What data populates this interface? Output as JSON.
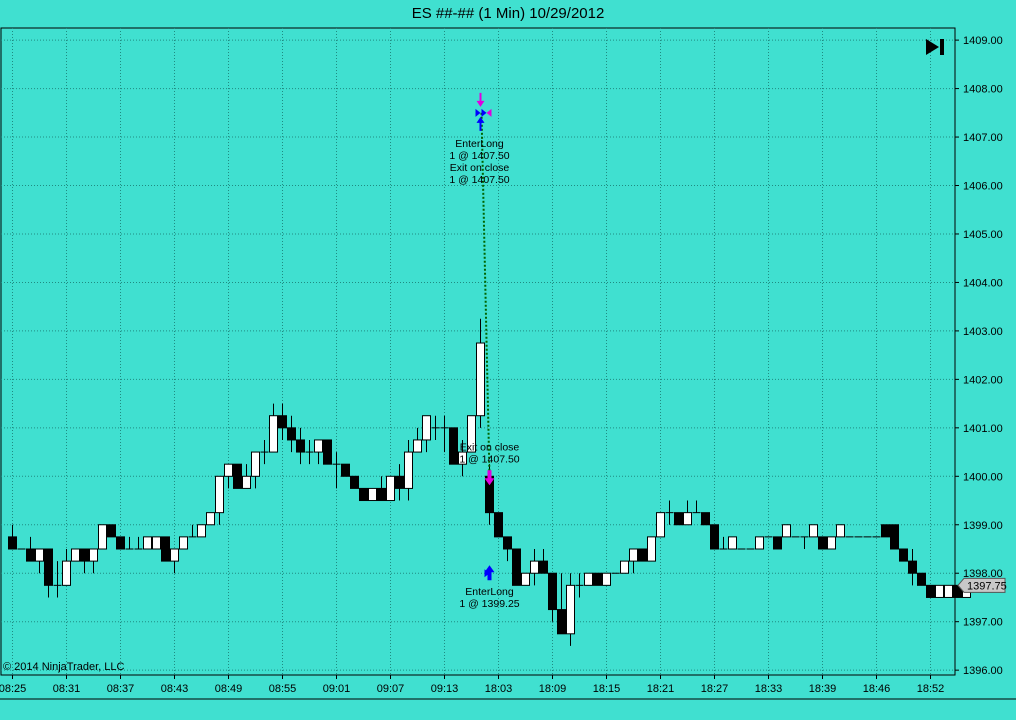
{
  "title": "ES ##-## (1 Min)  10/29/2012",
  "copyright": "© 2014 NinjaTrader, LLC",
  "colors": {
    "background": "#40E0D0",
    "grid": "#1f8c82",
    "bull": "#FFFFFF",
    "bear": "#000000",
    "entry": "#0000FF",
    "exit": "#E000E0",
    "trade_line": "#006400"
  },
  "icons": {
    "go_to_last_bar": "skip-to-end-icon"
  },
  "chart_data": {
    "type": "candlestick",
    "instrument": "ES ##-##",
    "interval": "1 Min",
    "date": "10/29/2012",
    "ylim": [
      1395.9,
      1409.25
    ],
    "y_ticks": [
      "1396.00",
      "1397.00",
      "1398.00",
      "1399.00",
      "1400.00",
      "1401.00",
      "1402.00",
      "1403.00",
      "1404.00",
      "1405.00",
      "1406.00",
      "1407.00",
      "1408.00",
      "1409.00"
    ],
    "x_ticks": [
      {
        "bar": 0,
        "label": "08:25"
      },
      {
        "bar": 6,
        "label": "08:31"
      },
      {
        "bar": 12,
        "label": "08:37"
      },
      {
        "bar": 18,
        "label": "08:43"
      },
      {
        "bar": 24,
        "label": "08:49"
      },
      {
        "bar": 30,
        "label": "08:55"
      },
      {
        "bar": 36,
        "label": "09:01"
      },
      {
        "bar": 42,
        "label": "09:07"
      },
      {
        "bar": 48,
        "label": "09:13"
      },
      {
        "bar": 54,
        "label": "18:03"
      },
      {
        "bar": 60,
        "label": "18:09"
      },
      {
        "bar": 66,
        "label": "18:15"
      },
      {
        "bar": 72,
        "label": "18:21"
      },
      {
        "bar": 78,
        "label": "18:27"
      },
      {
        "bar": 84,
        "label": "18:33"
      },
      {
        "bar": 90,
        "label": "18:39"
      },
      {
        "bar": 96,
        "label": "18:46"
      },
      {
        "bar": 102,
        "label": "18:52"
      }
    ],
    "last_price": "1397.75",
    "candles": [
      [
        1398.75,
        1399.0,
        1398.5,
        1398.5
      ],
      [
        1398.5,
        1398.5,
        1398.5,
        1398.5
      ],
      [
        1398.5,
        1398.75,
        1398.25,
        1398.25
      ],
      [
        1398.25,
        1398.5,
        1398.0,
        1398.5
      ],
      [
        1398.5,
        1398.5,
        1397.5,
        1397.75
      ],
      [
        1397.75,
        1398.25,
        1397.5,
        1397.75
      ],
      [
        1397.75,
        1398.5,
        1397.75,
        1398.25
      ],
      [
        1398.25,
        1398.5,
        1398.25,
        1398.5
      ],
      [
        1398.5,
        1398.5,
        1398.0,
        1398.25
      ],
      [
        1398.25,
        1398.5,
        1398.0,
        1398.5
      ],
      [
        1398.5,
        1399.0,
        1398.5,
        1399.0
      ],
      [
        1399.0,
        1399.0,
        1398.75,
        1398.75
      ],
      [
        1398.75,
        1398.75,
        1398.5,
        1398.5
      ],
      [
        1398.5,
        1398.75,
        1398.5,
        1398.5
      ],
      [
        1398.5,
        1398.75,
        1398.5,
        1398.5
      ],
      [
        1398.5,
        1398.75,
        1398.5,
        1398.75
      ],
      [
        1398.5,
        1398.75,
        1398.5,
        1398.75
      ],
      [
        1398.75,
        1398.75,
        1398.25,
        1398.25
      ],
      [
        1398.25,
        1398.5,
        1398.0,
        1398.5
      ],
      [
        1398.5,
        1398.75,
        1398.5,
        1398.75
      ],
      [
        1398.75,
        1399.0,
        1398.75,
        1398.75
      ],
      [
        1398.75,
        1399.0,
        1398.75,
        1399.0
      ],
      [
        1399.0,
        1399.25,
        1399.0,
        1399.25
      ],
      [
        1399.25,
        1400.0,
        1399.0,
        1400.0
      ],
      [
        1400.0,
        1400.25,
        1399.75,
        1400.25
      ],
      [
        1400.25,
        1400.25,
        1399.75,
        1399.75
      ],
      [
        1399.75,
        1400.25,
        1399.75,
        1400.0
      ],
      [
        1400.0,
        1400.5,
        1399.75,
        1400.5
      ],
      [
        1400.5,
        1400.75,
        1400.25,
        1400.5
      ],
      [
        1400.5,
        1401.5,
        1400.5,
        1401.25
      ],
      [
        1401.25,
        1401.5,
        1400.75,
        1401.0
      ],
      [
        1401.0,
        1401.25,
        1400.5,
        1400.75
      ],
      [
        1400.75,
        1401.0,
        1400.25,
        1400.5
      ],
      [
        1400.5,
        1400.75,
        1400.25,
        1400.5
      ],
      [
        1400.5,
        1400.75,
        1400.25,
        1400.75
      ],
      [
        1400.75,
        1400.75,
        1400.25,
        1400.25
      ],
      [
        1400.25,
        1400.5,
        1399.75,
        1400.25
      ],
      [
        1400.25,
        1400.25,
        1400.0,
        1400.0
      ],
      [
        1400.0,
        1400.0,
        1399.75,
        1399.75
      ],
      [
        1399.75,
        1399.75,
        1399.5,
        1399.5
      ],
      [
        1399.5,
        1399.75,
        1399.5,
        1399.75
      ],
      [
        1399.75,
        1400.0,
        1399.5,
        1399.5
      ],
      [
        1399.5,
        1400.0,
        1399.5,
        1400.0
      ],
      [
        1400.0,
        1400.25,
        1399.5,
        1399.75
      ],
      [
        1399.75,
        1400.75,
        1399.5,
        1400.5
      ],
      [
        1400.5,
        1401.0,
        1400.5,
        1400.75
      ],
      [
        1400.75,
        1401.25,
        1400.5,
        1401.25
      ],
      [
        1401.0,
        1401.25,
        1400.75,
        1401.0
      ],
      [
        1401.0,
        1401.25,
        1400.5,
        1401.0
      ],
      [
        1401.0,
        1401.0,
        1400.25,
        1400.25
      ],
      [
        1400.25,
        1400.75,
        1400.0,
        1400.5
      ],
      [
        1400.5,
        1401.25,
        1400.5,
        1401.25
      ],
      [
        1401.25,
        1403.25,
        1401.0,
        1402.75
      ],
      [
        1400.0,
        1400.25,
        1399.0,
        1399.25
      ],
      [
        1399.25,
        1399.25,
        1398.75,
        1398.75
      ],
      [
        1398.75,
        1398.75,
        1398.25,
        1398.5
      ],
      [
        1398.5,
        1398.5,
        1397.75,
        1397.75
      ],
      [
        1397.75,
        1398.0,
        1397.75,
        1398.0
      ],
      [
        1398.0,
        1398.5,
        1397.75,
        1398.25
      ],
      [
        1398.25,
        1398.5,
        1398.0,
        1398.0
      ],
      [
        1398.0,
        1398.0,
        1397.0,
        1397.25
      ],
      [
        1397.25,
        1398.0,
        1396.75,
        1396.75
      ],
      [
        1396.75,
        1398.0,
        1396.5,
        1397.75
      ],
      [
        1397.75,
        1398.0,
        1397.5,
        1397.75
      ],
      [
        1397.75,
        1398.0,
        1397.75,
        1398.0
      ],
      [
        1398.0,
        1398.0,
        1397.75,
        1397.75
      ],
      [
        1397.75,
        1398.0,
        1397.75,
        1398.0
      ],
      [
        1398.0,
        1398.0,
        1398.0,
        1398.0
      ],
      [
        1398.0,
        1398.25,
        1398.0,
        1398.25
      ],
      [
        1398.25,
        1398.5,
        1398.0,
        1398.5
      ],
      [
        1398.5,
        1398.5,
        1398.25,
        1398.25
      ],
      [
        1398.25,
        1398.75,
        1398.25,
        1398.75
      ],
      [
        1398.75,
        1399.25,
        1398.75,
        1399.25
      ],
      [
        1399.25,
        1399.5,
        1399.0,
        1399.25
      ],
      [
        1399.25,
        1399.25,
        1399.0,
        1399.0
      ],
      [
        1399.0,
        1399.5,
        1399.0,
        1399.25
      ],
      [
        1399.25,
        1399.5,
        1399.25,
        1399.25
      ],
      [
        1399.25,
        1399.25,
        1399.0,
        1399.0
      ],
      [
        1399.0,
        1399.0,
        1398.5,
        1398.5
      ],
      [
        1398.5,
        1398.75,
        1398.5,
        1398.5
      ],
      [
        1398.5,
        1398.75,
        1398.5,
        1398.75
      ],
      [
        1398.5,
        1398.5,
        1398.5,
        1398.5
      ],
      [
        1398.5,
        1398.5,
        1398.5,
        1398.5
      ],
      [
        1398.5,
        1398.75,
        1398.5,
        1398.75
      ],
      [
        1398.75,
        1398.75,
        1398.75,
        1398.75
      ],
      [
        1398.75,
        1398.75,
        1398.5,
        1398.5
      ],
      [
        1398.75,
        1399.0,
        1398.75,
        1399.0
      ],
      [
        1398.75,
        1398.75,
        1398.75,
        1398.75
      ],
      [
        1398.75,
        1398.75,
        1398.5,
        1398.75
      ],
      [
        1398.75,
        1399.0,
        1398.75,
        1399.0
      ],
      [
        1398.75,
        1398.75,
        1398.5,
        1398.5
      ],
      [
        1398.5,
        1398.75,
        1398.5,
        1398.75
      ],
      [
        1398.75,
        1399.0,
        1398.75,
        1399.0
      ],
      [
        1398.75,
        1398.75,
        1398.75,
        1398.75
      ],
      [
        1398.75,
        1398.75,
        1398.75,
        1398.75
      ],
      [
        1398.75,
        1398.75,
        1398.75,
        1398.75
      ],
      [
        1398.75,
        1398.75,
        1398.75,
        1398.75
      ],
      [
        1399.0,
        1399.0,
        1398.75,
        1398.75
      ],
      [
        1399.0,
        1399.0,
        1398.5,
        1398.5
      ],
      [
        1398.5,
        1398.5,
        1398.25,
        1398.25
      ],
      [
        1398.25,
        1398.5,
        1397.75,
        1398.0
      ],
      [
        1398.0,
        1398.0,
        1397.75,
        1397.75
      ],
      [
        1397.75,
        1397.75,
        1397.5,
        1397.5
      ],
      [
        1397.5,
        1397.75,
        1397.5,
        1397.75
      ],
      [
        1397.5,
        1397.75,
        1397.5,
        1397.75
      ],
      [
        1397.75,
        1397.75,
        1397.5,
        1397.5
      ],
      [
        1397.5,
        1397.75,
        1397.5,
        1397.75
      ]
    ],
    "annotations": [
      {
        "bar": 52,
        "price": 1407.5,
        "kind": "entry",
        "position": "above",
        "lines": [
          "EnterLong",
          "1 @ 1407.50",
          "Exit on close",
          "1 @ 1407.50"
        ]
      },
      {
        "bar": 53,
        "price": 1400.0,
        "kind": "exit",
        "position": "above",
        "lines": [
          "Exit on close",
          "1 @ 1407.50"
        ]
      },
      {
        "bar": 53,
        "price": 1398.0,
        "kind": "entry",
        "position": "below",
        "lines": [
          "EnterLong",
          "1 @ 1399.25"
        ]
      }
    ]
  }
}
